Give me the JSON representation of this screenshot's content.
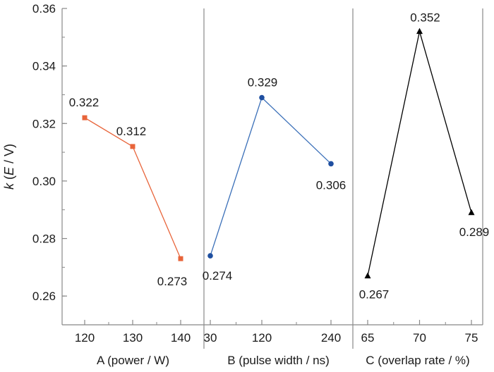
{
  "chart_data": {
    "type": "line",
    "ylabel_parts": [
      "k",
      " (",
      "E",
      " / V)"
    ],
    "ylim": [
      0.25,
      0.36
    ],
    "yticks": [
      0.26,
      0.28,
      0.3,
      0.32,
      0.34,
      0.36
    ],
    "ytick_labels": [
      "0.26",
      "0.28",
      "0.30",
      "0.32",
      "0.34",
      "0.36"
    ],
    "panels": [
      {
        "xlabel": "A (power / W)",
        "x": [
          120,
          130,
          140
        ],
        "xtick_labels": [
          "120",
          "130",
          "140"
        ],
        "values": [
          0.322,
          0.312,
          0.273
        ],
        "value_labels": [
          "0.322",
          "0.312",
          "0.273"
        ],
        "color": "#e8643a",
        "marker": "square"
      },
      {
        "xlabel": "B (pulse width / ns)",
        "x": [
          30,
          120,
          240
        ],
        "xtick_labels": [
          "30",
          "120",
          "240"
        ],
        "values": [
          0.274,
          0.329,
          0.306
        ],
        "value_labels": [
          "0.274",
          "0.329",
          "0.306"
        ],
        "color": "#3a6fb8",
        "marker": "circle"
      },
      {
        "xlabel": "C (overlap rate / %)",
        "x": [
          65,
          70,
          75
        ],
        "xtick_labels": [
          "65",
          "70",
          "75"
        ],
        "values": [
          0.267,
          0.352,
          0.289
        ],
        "value_labels": [
          "0.267",
          "0.352",
          "0.289"
        ],
        "color": "#000000",
        "marker": "triangle"
      }
    ],
    "grid": false,
    "legend": "none"
  }
}
